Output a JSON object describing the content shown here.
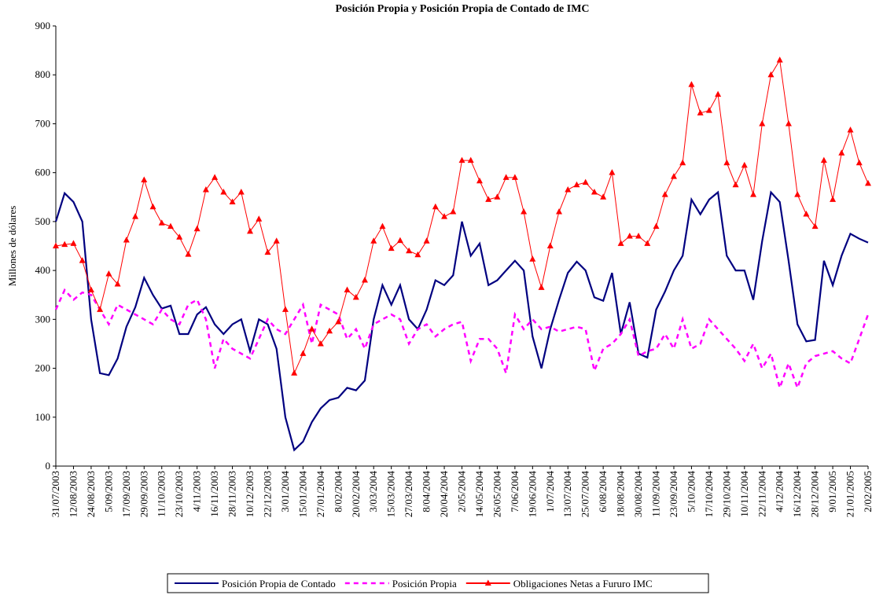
{
  "chart_data": {
    "type": "line",
    "title": "Posición Propia y Posición Propia de Contado de IMC",
    "y_label": "Millones de dólares",
    "categories": [
      "31/07/2003",
      null,
      "12/08/2003",
      null,
      "24/08/2003",
      null,
      "5/09/2003",
      null,
      "17/09/2003",
      null,
      "29/09/2003",
      null,
      "11/10/2003",
      null,
      "23/10/2003",
      null,
      "4/11/2003",
      null,
      "16/11/2003",
      null,
      "28/11/2003",
      null,
      "10/12/2003",
      null,
      "22/12/2003",
      null,
      "3/01/2004",
      null,
      "15/01/2004",
      null,
      "27/01/2004",
      null,
      "8/02/2004",
      null,
      "20/02/2004",
      null,
      "3/03/2004",
      null,
      "15/03/2004",
      null,
      "27/03/2004",
      null,
      "8/04/2004",
      null,
      "20/04/2004",
      null,
      "2/05/2004",
      null,
      "14/05/2004",
      null,
      "26/05/2004",
      null,
      "7/06/2004",
      null,
      "19/06/2004",
      null,
      "1/07/2004",
      null,
      "13/07/2004",
      null,
      "25/07/2004",
      null,
      "6/08/2004",
      null,
      "18/08/2004",
      null,
      "30/08/2004",
      null,
      "11/09/2004",
      null,
      "23/09/2004",
      null,
      "5/10/2004",
      null,
      "17/10/2004",
      null,
      "29/10/2004",
      null,
      "10/11/2004",
      null,
      "22/11/2004",
      null,
      "4/12/2004",
      null,
      "16/12/2004",
      null,
      "28/12/2004",
      null,
      "9/01/2005",
      null,
      "21/01/2005",
      null,
      "2/02/2005"
    ],
    "series": [
      {
        "name": "Posición Propia de Contado",
        "color": "#000080",
        "style": "solid",
        "marker": "none",
        "values": [
          500,
          558,
          540,
          500,
          300,
          190,
          186,
          220,
          285,
          325,
          385,
          350,
          322,
          328,
          270,
          270,
          310,
          325,
          290,
          270,
          290,
          300,
          235,
          300,
          290,
          240,
          100,
          33,
          50,
          90,
          118,
          135,
          140,
          160,
          155,
          175,
          300,
          370,
          330,
          370,
          300,
          280,
          320,
          380,
          370,
          390,
          500,
          430,
          455,
          370,
          380,
          400,
          420,
          400,
          265,
          200,
          280,
          340,
          395,
          418,
          400,
          345,
          338,
          395,
          270,
          335,
          230,
          222,
          320,
          357,
          400,
          430,
          545,
          515,
          545,
          560,
          430,
          400,
          400,
          340,
          460,
          560,
          540,
          420,
          290,
          255,
          258,
          420,
          370,
          430,
          475,
          465,
          457
        ]
      },
      {
        "name": "Posición Propia",
        "color": "#ff00ff",
        "style": "dashed",
        "marker": "none",
        "values": [
          320,
          360,
          340,
          355,
          350,
          320,
          290,
          330,
          320,
          310,
          300,
          290,
          320,
          300,
          290,
          330,
          340,
          300,
          200,
          260,
          240,
          230,
          220,
          260,
          300,
          280,
          270,
          300,
          330,
          250,
          330,
          320,
          310,
          260,
          280,
          240,
          290,
          300,
          310,
          300,
          250,
          280,
          290,
          265,
          280,
          290,
          295,
          215,
          260,
          260,
          240,
          190,
          310,
          280,
          300,
          280,
          285,
          275,
          280,
          285,
          280,
          195,
          240,
          250,
          270,
          300,
          225,
          235,
          240,
          270,
          240,
          300,
          240,
          250,
          300,
          280,
          260,
          240,
          215,
          250,
          200,
          230,
          160,
          210,
          160,
          210,
          225,
          230,
          235,
          220,
          210,
          260,
          310
        ]
      },
      {
        "name": "Obligaciones Netas a Fururo IMC",
        "color": "#ff0000",
        "style": "solid",
        "marker": "triangle",
        "values": [
          450,
          453,
          455,
          420,
          360,
          320,
          393,
          372,
          462,
          510,
          585,
          530,
          497,
          490,
          468,
          433,
          485,
          565,
          590,
          560,
          540,
          560,
          480,
          505,
          437,
          460,
          320,
          190,
          230,
          280,
          250,
          276,
          295,
          360,
          345,
          380,
          460,
          490,
          445,
          461,
          440,
          432,
          460,
          530,
          510,
          520,
          625,
          625,
          583,
          545,
          550,
          590,
          590,
          520,
          423,
          365,
          450,
          520,
          565,
          575,
          580,
          560,
          550,
          600,
          455,
          470,
          470,
          455,
          490,
          555,
          592,
          620,
          780,
          722,
          727,
          760,
          620,
          575,
          615,
          555,
          700,
          800,
          830,
          700,
          555,
          515,
          490,
          625,
          545,
          640,
          687,
          620,
          578
        ]
      }
    ],
    "ylim": [
      0,
      900
    ],
    "yticks": [
      0,
      100,
      200,
      300,
      400,
      500,
      600,
      700,
      800,
      900
    ],
    "legend": "bottom",
    "grid": false
  }
}
